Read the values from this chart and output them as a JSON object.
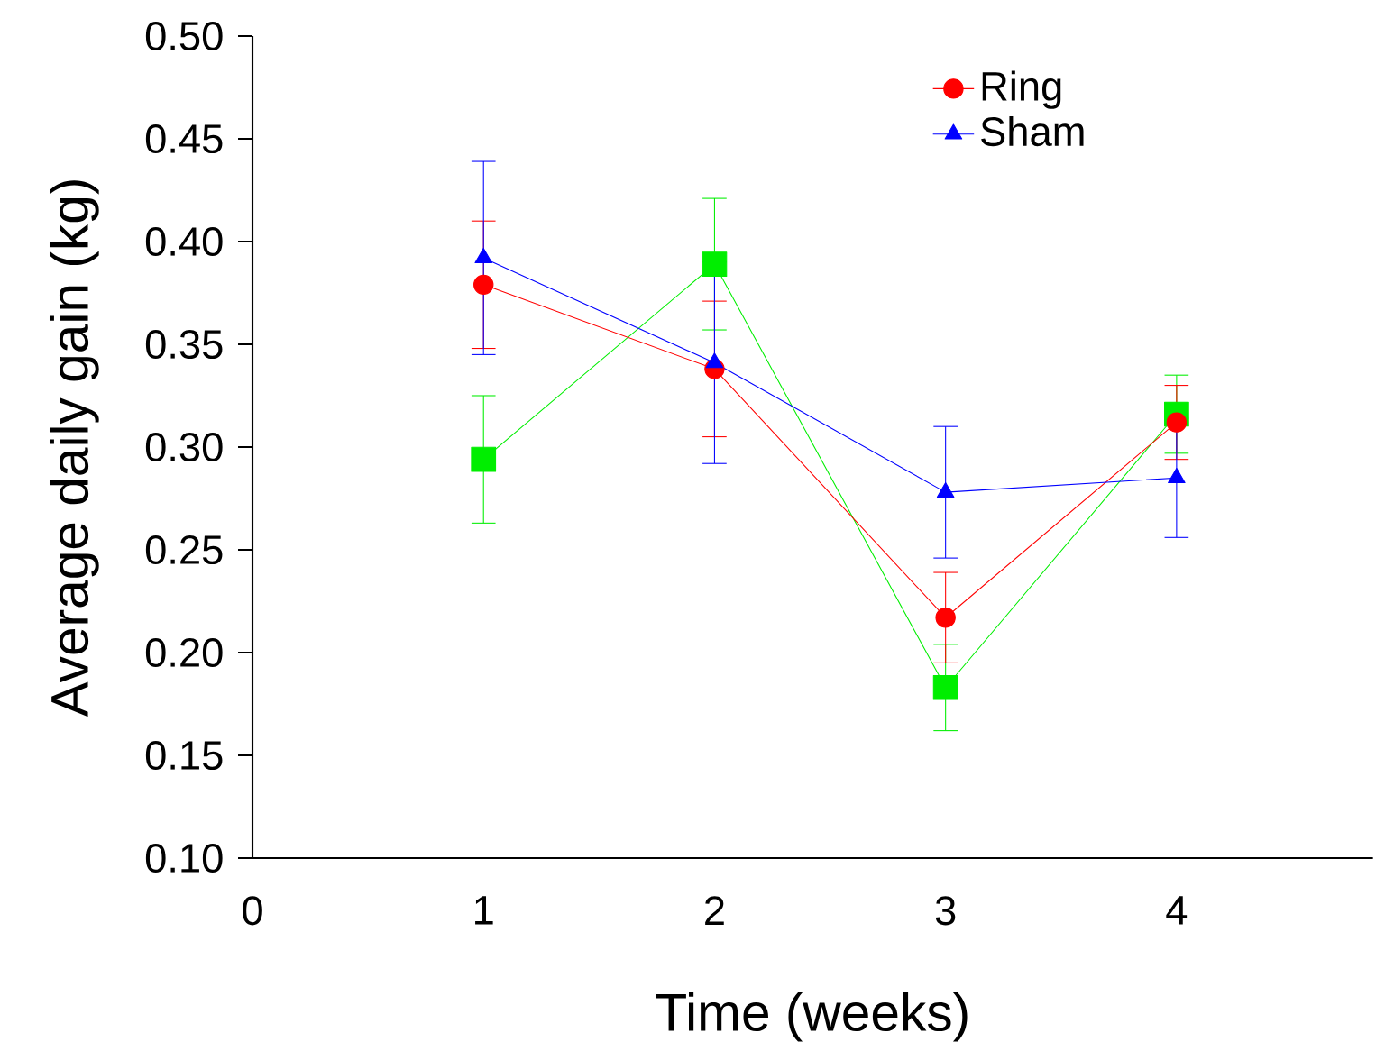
{
  "chart_data": {
    "type": "line",
    "xlabel": "Time (weeks)",
    "ylabel": "Average daily gain (kg)",
    "x": [
      1,
      2,
      3,
      4
    ],
    "series": [
      {
        "color": "#00ee00",
        "marker": "square",
        "values": [
          0.294,
          0.389,
          0.183,
          0.316
        ],
        "errors": [
          0.031,
          0.032,
          0.021,
          0.019
        ]
      },
      {
        "name": "Ring",
        "color": "#ff0000",
        "marker": "circle",
        "values": [
          0.379,
          0.338,
          0.217,
          0.312
        ],
        "errors": [
          0.031,
          0.033,
          0.022,
          0.018
        ]
      },
      {
        "name": "Sham",
        "color": "#0000ff",
        "marker": "triangle",
        "values": [
          0.392,
          0.341,
          0.278,
          0.285
        ],
        "errors": [
          0.047,
          0.049,
          0.032,
          0.029
        ]
      }
    ],
    "xlim": [
      0,
      4.85
    ],
    "ylim": [
      0.1,
      0.5
    ],
    "xticks": [
      0,
      1,
      2,
      3,
      4
    ],
    "yticks": [
      {
        "value": 0.1,
        "label": "0.10"
      },
      {
        "value": 0.15,
        "label": "0.15"
      },
      {
        "value": 0.2,
        "label": "0.20"
      },
      {
        "value": 0.25,
        "label": "0.25"
      },
      {
        "value": 0.3,
        "label": "0.30"
      },
      {
        "value": 0.35,
        "label": "0.35"
      },
      {
        "value": 0.4,
        "label": "0.40"
      },
      {
        "value": 0.45,
        "label": "0.45"
      },
      {
        "value": 0.5,
        "label": "0.50"
      }
    ],
    "grid": false,
    "legend": "top right",
    "line_style": "solid"
  }
}
